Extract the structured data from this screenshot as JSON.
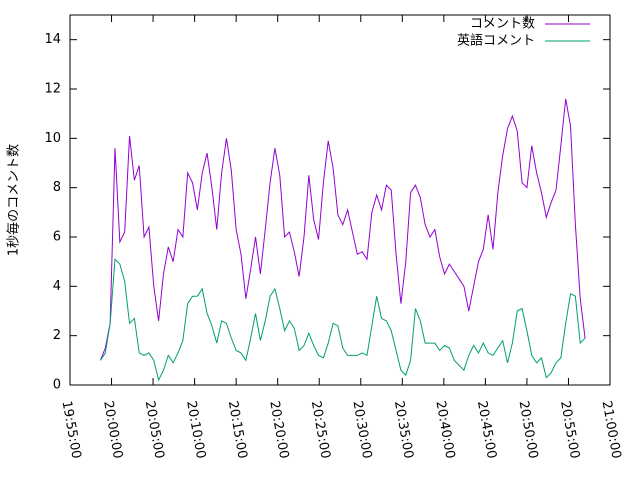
{
  "chart_data": {
    "type": "line",
    "ylabel": "1秒毎のコメント数",
    "x": [
      "19:58:40",
      "19:59:15",
      "19:59:50",
      "20:00:25",
      "20:01:00",
      "20:01:35",
      "20:02:10",
      "20:02:45",
      "20:03:20",
      "20:03:55",
      "20:04:30",
      "20:05:05",
      "20:05:40",
      "20:06:15",
      "20:06:50",
      "20:07:25",
      "20:08:00",
      "20:08:35",
      "20:09:10",
      "20:09:45",
      "20:10:20",
      "20:10:55",
      "20:11:30",
      "20:12:05",
      "20:12:40",
      "20:13:15",
      "20:13:50",
      "20:14:25",
      "20:15:00",
      "20:15:35",
      "20:16:10",
      "20:16:45",
      "20:17:20",
      "20:17:55",
      "20:18:30",
      "20:19:05",
      "20:19:40",
      "20:20:15",
      "20:20:50",
      "20:21:25",
      "20:22:00",
      "20:22:35",
      "20:23:10",
      "20:23:45",
      "20:24:20",
      "20:24:55",
      "20:25:30",
      "20:26:05",
      "20:26:40",
      "20:27:15",
      "20:27:50",
      "20:28:25",
      "20:29:00",
      "20:29:35",
      "20:30:10",
      "20:30:45",
      "20:31:20",
      "20:31:55",
      "20:32:30",
      "20:33:05",
      "20:33:40",
      "20:34:15",
      "20:34:50",
      "20:35:25",
      "20:36:00",
      "20:36:35",
      "20:37:10",
      "20:37:45",
      "20:38:20",
      "20:38:55",
      "20:39:30",
      "20:40:05",
      "20:40:40",
      "20:41:15",
      "20:41:50",
      "20:42:25",
      "20:43:00",
      "20:43:35",
      "20:44:10",
      "20:44:45",
      "20:45:20",
      "20:45:55",
      "20:46:30",
      "20:47:05",
      "20:47:40",
      "20:48:15",
      "20:48:50",
      "20:49:25",
      "20:50:00",
      "20:50:35",
      "20:51:10",
      "20:51:45",
      "20:52:20",
      "20:52:55",
      "20:53:30",
      "20:54:05",
      "20:54:40",
      "20:55:15",
      "20:55:50",
      "20:56:25",
      "20:57:00"
    ],
    "series": [
      {
        "name": "コメント数",
        "color": "#9400d3",
        "values": [
          1,
          1.5,
          2.5,
          9.6,
          5.8,
          6.2,
          10.1,
          8.3,
          8.9,
          6,
          6.4,
          4,
          2.6,
          4.5,
          5.6,
          5,
          6.3,
          6,
          8.6,
          8.2,
          7.1,
          8.6,
          9.4,
          8,
          6.3,
          8.6,
          10,
          8.7,
          6.3,
          5.3,
          3.5,
          4.7,
          6,
          4.5,
          6.3,
          8.2,
          9.6,
          8.5,
          6,
          6.2,
          5.4,
          4.4,
          6,
          8.5,
          6.7,
          5.9,
          8.2,
          9.9,
          8.8,
          6.9,
          6.5,
          7.1,
          6.2,
          5.3,
          5.4,
          5.1,
          7,
          7.7,
          7.1,
          8.1,
          7.9,
          5.3,
          3.3,
          5,
          7.8,
          8.1,
          7.6,
          6.5,
          6,
          6.3,
          5.2,
          4.5,
          4.9,
          4.6,
          4.3,
          4,
          3,
          4,
          5,
          5.5,
          6.9,
          5.5,
          7.8,
          9.3,
          10.4,
          10.9,
          10.3,
          8.2,
          8,
          9.7,
          8.6,
          7.8,
          6.8,
          7.4,
          7.9,
          9.7,
          11.6,
          10.5,
          6.5,
          3.5,
          1.9
        ]
      },
      {
        "name": "英語コメント",
        "color": "#009e73",
        "values": [
          1,
          1.3,
          2.5,
          5.1,
          4.9,
          4.2,
          2.5,
          2.7,
          1.3,
          1.2,
          1.3,
          1,
          0.2,
          0.6,
          1.2,
          0.9,
          1.3,
          1.8,
          3.3,
          3.6,
          3.6,
          3.9,
          2.9,
          2.4,
          1.7,
          2.6,
          2.5,
          1.9,
          1.4,
          1.3,
          1,
          1.9,
          2.9,
          1.8,
          2.6,
          3.6,
          3.9,
          3.1,
          2.2,
          2.6,
          2.3,
          1.4,
          1.6,
          2.1,
          1.6,
          1.2,
          1.1,
          1.7,
          2.5,
          2.4,
          1.5,
          1.2,
          1.2,
          1.2,
          1.3,
          1.2,
          2.4,
          3.6,
          2.7,
          2.6,
          2.2,
          1.4,
          0.6,
          0.4,
          1,
          3.1,
          2.6,
          1.7,
          1.7,
          1.7,
          1.4,
          1.6,
          1.5,
          1,
          0.8,
          0.6,
          1.2,
          1.6,
          1.3,
          1.7,
          1.3,
          1.2,
          1.5,
          1.8,
          0.9,
          1.7,
          3,
          3.1,
          2.2,
          1.2,
          0.9,
          1.1,
          0.3,
          0.5,
          0.9,
          1.1,
          2.5,
          3.7,
          3.6,
          1.7,
          1.9
        ]
      }
    ],
    "xlim": [
      "19:55:00",
      "21:00:00"
    ],
    "xticks": [
      "19:55:00",
      "20:00:00",
      "20:05:00",
      "20:10:00",
      "20:15:00",
      "20:20:00",
      "20:25:00",
      "20:30:00",
      "20:35:00",
      "20:40:00",
      "20:45:00",
      "20:50:00",
      "20:55:00",
      "21:00:00"
    ],
    "ylim": [
      0,
      15
    ],
    "yticks": [
      0,
      2,
      4,
      6,
      8,
      10,
      12,
      14
    ],
    "legend": "top-right"
  }
}
